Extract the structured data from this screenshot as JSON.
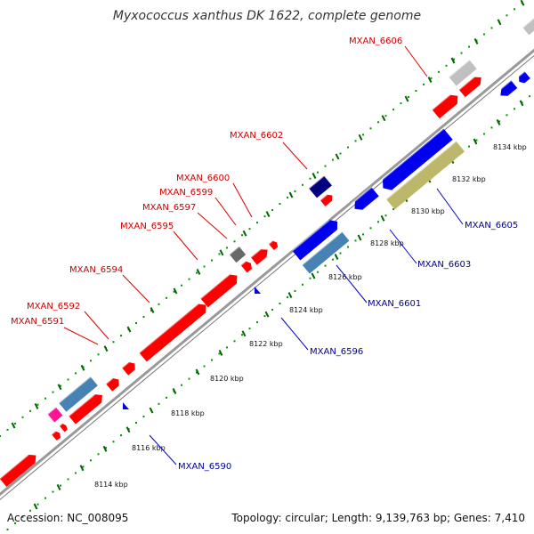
{
  "title": "Myxococcus xanthus DK 1622, complete genome",
  "footer": {
    "accession": "Accession: NC_008095",
    "stats": "Topology: circular; Length: 9,139,763 bp; Genes: 7,410"
  },
  "colors": {
    "backbone": "#999999",
    "label_forward": "#cc0000",
    "label_reverse": "#000099",
    "leader_forward": "#dd0000",
    "leader_reverse": "#0000cc",
    "dots": "#009900",
    "tick_mark": "#006600"
  },
  "scale_ticks": [
    {
      "label": "8114 kbp",
      "kbp": 8114
    },
    {
      "label": "8116 kbp",
      "kbp": 8116
    },
    {
      "label": "8118 kbp",
      "kbp": 8118
    },
    {
      "label": "8120 kbp",
      "kbp": 8120
    },
    {
      "label": "8122 kbp",
      "kbp": 8122
    },
    {
      "label": "8124 kbp",
      "kbp": 8124
    },
    {
      "label": "8126 kbp",
      "kbp": 8126
    },
    {
      "label": "8128 kbp",
      "kbp": 8128
    },
    {
      "label": "8130 kbp",
      "kbp": 8130
    },
    {
      "label": "8132 kbp",
      "kbp": 8132
    },
    {
      "label": "8134 kbp",
      "kbp": 8134
    }
  ],
  "gene_labels_forward": [
    {
      "text": "MXAN_6591"
    },
    {
      "text": "MXAN_6592"
    },
    {
      "text": "MXAN_6594"
    },
    {
      "text": "MXAN_6595"
    },
    {
      "text": "MXAN_6597"
    },
    {
      "text": "MXAN_6599"
    },
    {
      "text": "MXAN_6600"
    },
    {
      "text": "MXAN_6602"
    },
    {
      "text": "MXAN_6606"
    }
  ],
  "gene_labels_reverse": [
    {
      "text": "MXAN_6590"
    },
    {
      "text": "MXAN_6596"
    },
    {
      "text": "MXAN_6601"
    },
    {
      "text": "MXAN_6603"
    },
    {
      "text": "MXAN_6605"
    }
  ]
}
